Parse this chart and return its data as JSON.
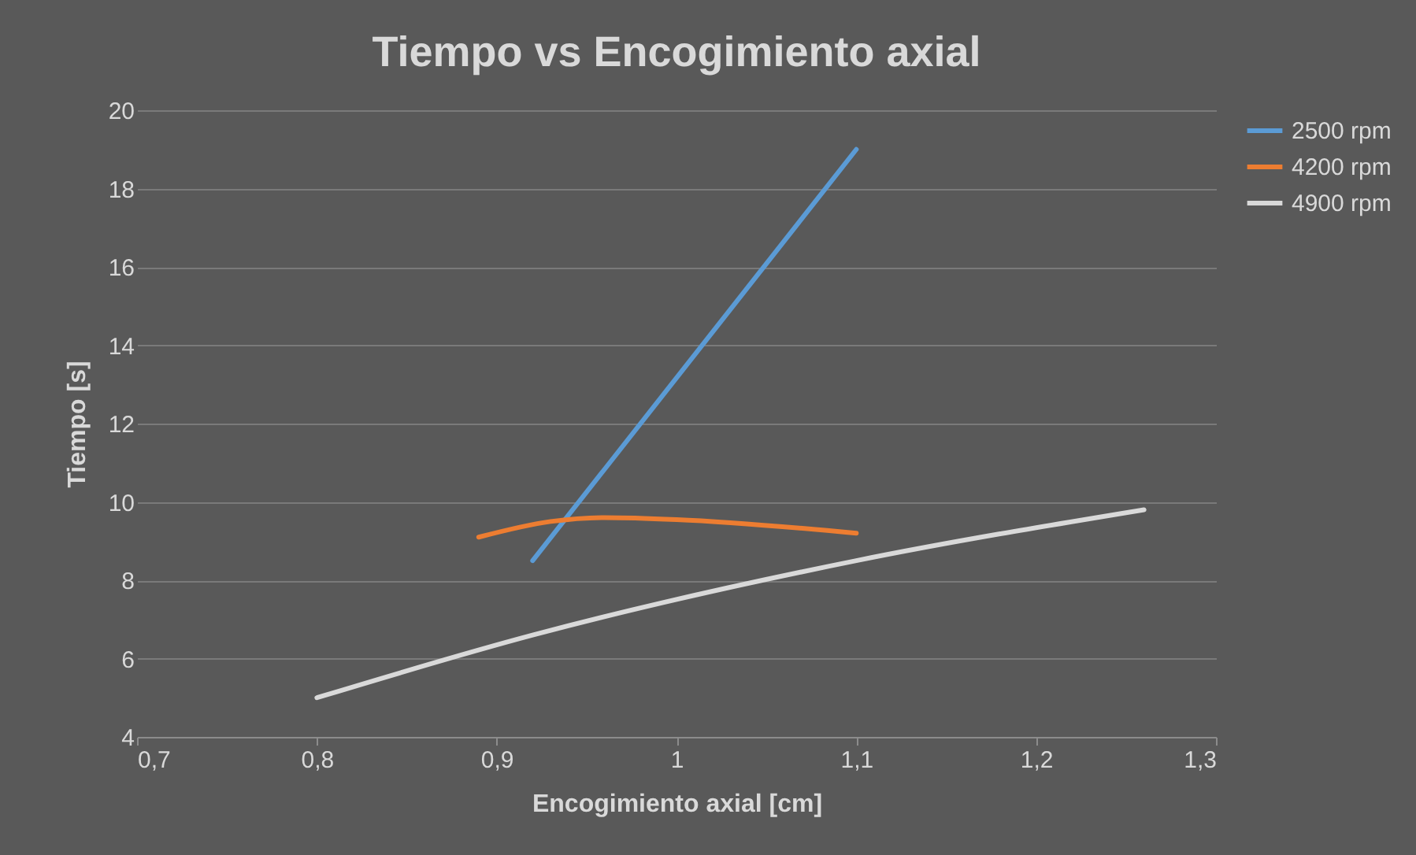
{
  "chart_data": {
    "type": "line",
    "title": "Tiempo vs Encogimiento axial",
    "xlabel": "Encogimiento axial [cm]",
    "ylabel": "Tiempo [s]",
    "xlim": [
      0.7,
      1.3
    ],
    "xticks": [
      {
        "value": 0.7,
        "label": "0,7"
      },
      {
        "value": 0.8,
        "label": "0,8"
      },
      {
        "value": 0.9,
        "label": "0,9"
      },
      {
        "value": 1,
        "label": "1"
      },
      {
        "value": 1.1,
        "label": "1,1"
      },
      {
        "value": 1.2,
        "label": "1,2"
      },
      {
        "value": 1.3,
        "label": "1,3"
      }
    ],
    "ylim": [
      4,
      20
    ],
    "yticks": [
      4,
      6,
      8,
      10,
      12,
      14,
      16,
      18,
      20
    ],
    "grid": "y",
    "legend": "right",
    "marker": "none",
    "line_style": "solid",
    "series": [
      {
        "name": "2500 rpm",
        "color": "#5b9bd5",
        "x": [
          0.92,
          1.1
        ],
        "values": [
          8.5,
          19
        ]
      },
      {
        "name": "4200 rpm",
        "color": "#ed7d31",
        "x": [
          0.89,
          0.93,
          0.96,
          1.0,
          1.1
        ],
        "values": [
          9.1,
          9.5,
          9.6,
          9.55,
          9.2
        ]
      },
      {
        "name": "4900 rpm",
        "color": "#d9d9d9",
        "x": [
          0.8,
          0.92,
          1.1,
          1.26
        ],
        "values": [
          5.0,
          6.6,
          8.5,
          9.8
        ]
      }
    ]
  }
}
